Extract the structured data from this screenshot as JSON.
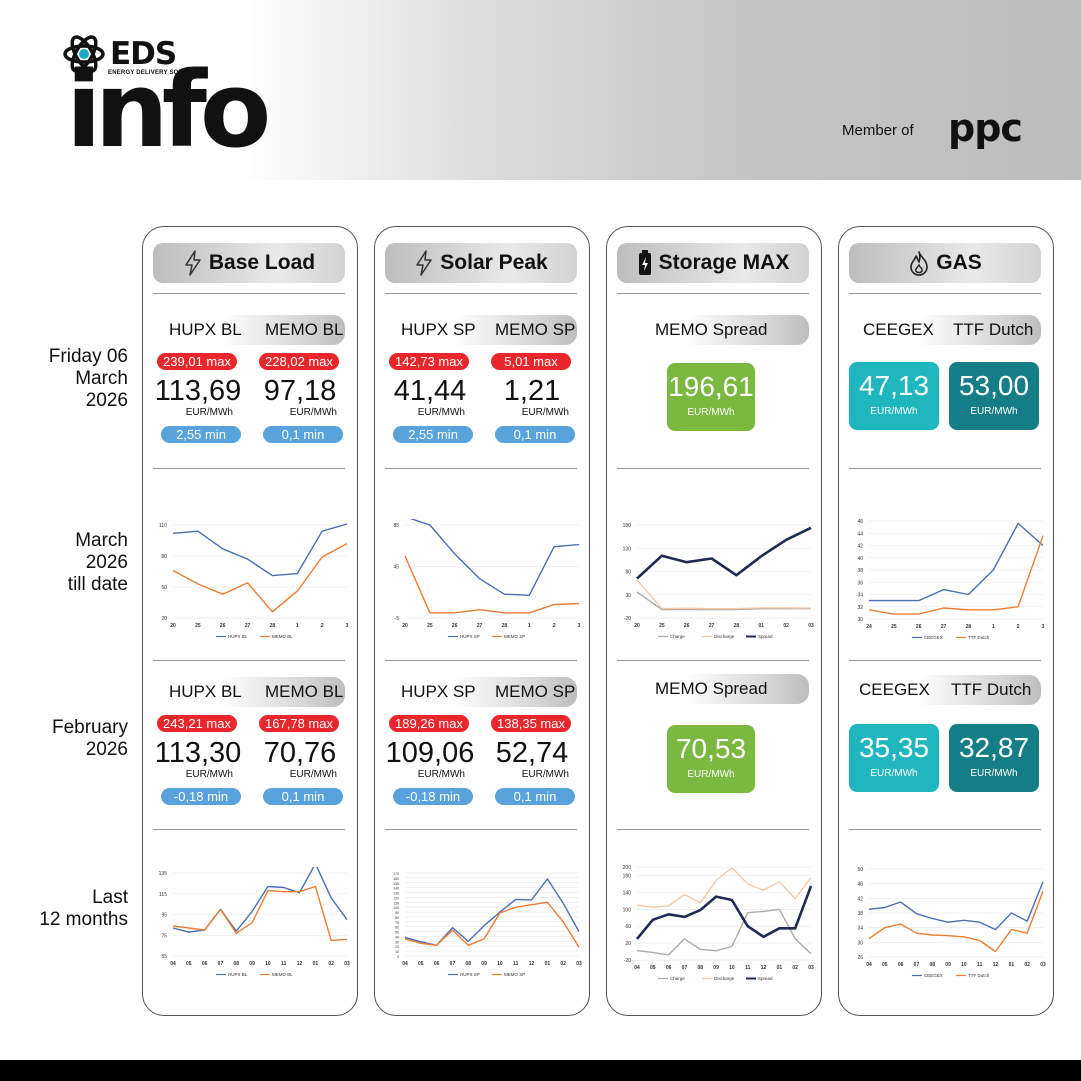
{
  "brand": {
    "name": "EDS",
    "subtitle": "ENERGY DELIVERY SOLUTIONS",
    "word": "info",
    "member_label": "Member of",
    "member_brand": "ppc"
  },
  "colors": {
    "red": "#e8262b",
    "blue_badge": "#59a3dc",
    "green": "#7ab840",
    "teal": "#20b6bd",
    "dark_teal": "#157d86",
    "series_blue": "#4a6fb5",
    "series_orange": "#ed7d31",
    "spread": "#1f2a55"
  },
  "row_labels": {
    "r1": [
      "Friday 06",
      "March",
      "2026"
    ],
    "r2": [
      "March",
      "2026",
      "till date"
    ],
    "r3": [
      "February",
      "2026"
    ],
    "r4": [
      "Last",
      "12 months"
    ]
  },
  "cards": {
    "base": {
      "title": "Base Load",
      "icon": "bolt-icon",
      "day": {
        "c1": {
          "name": "HUPX BL",
          "max": "239,01 max",
          "value": "113,69",
          "unit": "EUR/MWh",
          "min": "2,55 min"
        },
        "c2": {
          "name": "MEMO BL",
          "max": "228,02 max",
          "value": "97,18",
          "unit": "EUR/MWh",
          "min": "0,1 min"
        }
      },
      "month": {
        "c1": {
          "name": "HUPX BL",
          "max": "243,21 max",
          "value": "113,30",
          "unit": "EUR/MWh",
          "min": "-0,18 min"
        },
        "c2": {
          "name": "MEMO BL",
          "max": "167,78 max",
          "value": "70,76",
          "unit": "EUR/MWh",
          "min": "0,1 min"
        }
      }
    },
    "solar": {
      "title": "Solar Peak",
      "icon": "bolt-icon",
      "day": {
        "c1": {
          "name": "HUPX SP",
          "max": "142,73 max",
          "value": "41,44",
          "unit": "EUR/MWh",
          "min": "2,55 min"
        },
        "c2": {
          "name": "MEMO SP",
          "max": "5,01 max",
          "value": "1,21",
          "unit": "EUR/MWh",
          "min": "0,1 min"
        }
      },
      "month": {
        "c1": {
          "name": "HUPX SP",
          "max": "189,26 max",
          "value": "109,06",
          "unit": "EUR/MWh",
          "min": "-0,18 min"
        },
        "c2": {
          "name": "MEMO SP",
          "max": "138,35 max",
          "value": "52,74",
          "unit": "EUR/MWh",
          "min": "0,1 min"
        }
      }
    },
    "storage": {
      "title": "Storage MAX",
      "icon": "battery-icon",
      "day": {
        "name": "MEMO Spread",
        "value": "196,61",
        "unit": "EUR/MWh"
      },
      "month": {
        "name": "MEMO Spread",
        "value": "70,53",
        "unit": "EUR/MWh"
      }
    },
    "gas": {
      "title": "GAS",
      "icon": "flame-icon",
      "day": {
        "c1": {
          "name": "CEEGEX",
          "value": "47,13",
          "unit": "EUR/MWh"
        },
        "c2": {
          "name": "TTF Dutch",
          "value": "53,00",
          "unit": "EUR/MWh"
        }
      },
      "month": {
        "c1": {
          "name": "CEEGEX",
          "value": "35,35",
          "unit": "EUR/MWh"
        },
        "c2": {
          "name": "TTF Dutch",
          "value": "32,87",
          "unit": "EUR/MWh"
        }
      }
    }
  },
  "chart_data": [
    {
      "id": "bl_mtd",
      "type": "line",
      "categories": [
        "20",
        "25",
        "26",
        "27",
        "28",
        "1",
        "2",
        "3"
      ],
      "ylim": [
        20,
        110
      ],
      "yticks": [
        "20",
        "50",
        "80",
        "110"
      ],
      "series": [
        {
          "name": "HUPX BL",
          "color": "#4a6fb5",
          "values": [
            102,
            104,
            87,
            77,
            61,
            63,
            104,
            111
          ]
        },
        {
          "name": "MEMO BL",
          "color": "#ed7d31",
          "values": [
            66,
            53,
            43,
            54,
            26,
            46,
            79,
            92
          ]
        }
      ]
    },
    {
      "id": "sp_mtd",
      "type": "line",
      "categories": [
        "20",
        "25",
        "26",
        "27",
        "28",
        "1",
        "2",
        "3"
      ],
      "ylim": [
        -5,
        85
      ],
      "yticks": [
        "-5",
        "45",
        "85"
      ],
      "series": [
        {
          "name": "HUPX SP",
          "color": "#4a6fb5",
          "values": [
            93,
            85,
            57,
            33,
            18,
            17,
            64,
            66
          ]
        },
        {
          "name": "MEMO SP",
          "color": "#ed7d31",
          "values": [
            55,
            0,
            0,
            3,
            0,
            0,
            8,
            9
          ]
        }
      ]
    },
    {
      "id": "st_mtd",
      "type": "line",
      "categories": [
        "20",
        "25",
        "26",
        "27",
        "28",
        "01",
        "02",
        "03"
      ],
      "ylim": [
        -20,
        180
      ],
      "yticks": [
        "-20",
        "30",
        "80",
        "130",
        "180"
      ],
      "series": [
        {
          "name": "Charge",
          "color": "#aaaaaa",
          "values": [
            36,
            -2,
            -2,
            -2,
            -2,
            0,
            0,
            0
          ]
        },
        {
          "name": "Discharge",
          "color": "#f3c9a8",
          "values": [
            62,
            0,
            1,
            0,
            0,
            2,
            2,
            1
          ]
        },
        {
          "name": "Spread",
          "color": "#1f2a55",
          "values": [
            65,
            114,
            100,
            108,
            72,
            113,
            148,
            174
          ]
        }
      ]
    },
    {
      "id": "gas_mtd",
      "type": "line",
      "categories": [
        "24",
        "25",
        "26",
        "27",
        "28",
        "1",
        "2",
        "3"
      ],
      "ylim": [
        30,
        46
      ],
      "yticks": [
        "30",
        "32",
        "34",
        "36",
        "38",
        "40",
        "42",
        "44",
        "46"
      ],
      "series": [
        {
          "name": "CEEGEX",
          "color": "#4a6fb5",
          "values": [
            33,
            33,
            33,
            34.8,
            34,
            38,
            45.6,
            42
          ]
        },
        {
          "name": "TTF Dutch",
          "color": "#ed7d31",
          "values": [
            31.5,
            30.8,
            30.8,
            31.8,
            31.5,
            31.5,
            32,
            43.6
          ]
        }
      ]
    },
    {
      "id": "bl_12m",
      "type": "line",
      "categories": [
        "04",
        "05",
        "06",
        "07",
        "08",
        "09",
        "10",
        "11",
        "12",
        "01",
        "02",
        "03"
      ],
      "ylim": [
        55,
        135
      ],
      "yticks": [
        "55",
        "75",
        "95",
        "115",
        "135"
      ],
      "series": [
        {
          "name": "HUPX BL",
          "color": "#4a6fb5",
          "values": [
            82,
            78,
            80,
            100,
            79,
            98,
            122,
            121,
            116,
            144,
            111,
            90
          ]
        },
        {
          "name": "MEMO BL",
          "color": "#ed7d31",
          "values": [
            84,
            82,
            80,
            100,
            77,
            87,
            118,
            117,
            117,
            122,
            70,
            71
          ]
        }
      ]
    },
    {
      "id": "sp_12m",
      "type": "line",
      "categories": [
        "04",
        "05",
        "06",
        "07",
        "08",
        "09",
        "10",
        "11",
        "12",
        "01",
        "02",
        "03"
      ],
      "ylim": [
        0,
        170
      ],
      "yticks": [
        "0",
        "10",
        "20",
        "30",
        "40",
        "50",
        "60",
        "70",
        "80",
        "90",
        "100",
        "110",
        "120",
        "130",
        "140",
        "150",
        "160",
        "170"
      ],
      "series": [
        {
          "name": "HUPX SP",
          "color": "#4a6fb5",
          "values": [
            38,
            29,
            22,
            58,
            30,
            62,
            90,
            116,
            115,
            158,
            108,
            50
          ]
        },
        {
          "name": "MEMO SP",
          "color": "#ed7d31",
          "values": [
            35,
            26,
            22,
            53,
            22,
            35,
            88,
            100,
            105,
            110,
            70,
            18
          ]
        }
      ]
    },
    {
      "id": "st_12m",
      "type": "line",
      "categories": [
        "04",
        "05",
        "06",
        "07",
        "08",
        "09",
        "10",
        "11",
        "12",
        "01",
        "02",
        "03"
      ],
      "ylim": [
        -20,
        200
      ],
      "yticks": [
        "-20",
        "20",
        "60",
        "100",
        "140",
        "180",
        "200"
      ],
      "series": [
        {
          "name": "Charge",
          "color": "#aaaaaa",
          "values": [
            2,
            -2,
            -8,
            30,
            5,
            2,
            12,
            92,
            95,
            100,
            30,
            -5
          ]
        },
        {
          "name": "Discharge",
          "color": "#f3c9a8",
          "values": [
            110,
            105,
            108,
            135,
            115,
            168,
            198,
            160,
            145,
            165,
            125,
            175
          ]
        },
        {
          "name": "Spread",
          "color": "#1f2a55",
          "values": [
            30,
            75,
            88,
            82,
            98,
            130,
            122,
            60,
            35,
            55,
            55,
            155
          ]
        }
      ]
    },
    {
      "id": "gas_12m",
      "type": "line",
      "categories": [
        "04",
        "05",
        "06",
        "07",
        "08",
        "09",
        "10",
        "11",
        "12",
        "01",
        "02",
        "03"
      ],
      "ylim": [
        26,
        50
      ],
      "yticks": [
        "26",
        "30",
        "34",
        "38",
        "42",
        "46",
        "50"
      ],
      "series": [
        {
          "name": "CEEGEX",
          "color": "#4a6fb5",
          "values": [
            39,
            39.5,
            41,
            37.8,
            36.5,
            35.5,
            36,
            35.5,
            33.5,
            38,
            35.8,
            46.5
          ]
        },
        {
          "name": "TTF Dutch",
          "color": "#ed7d31",
          "values": [
            31,
            34,
            35,
            32.5,
            32,
            31.8,
            31.5,
            30.5,
            27.5,
            33.5,
            32.5,
            44
          ]
        }
      ]
    }
  ]
}
